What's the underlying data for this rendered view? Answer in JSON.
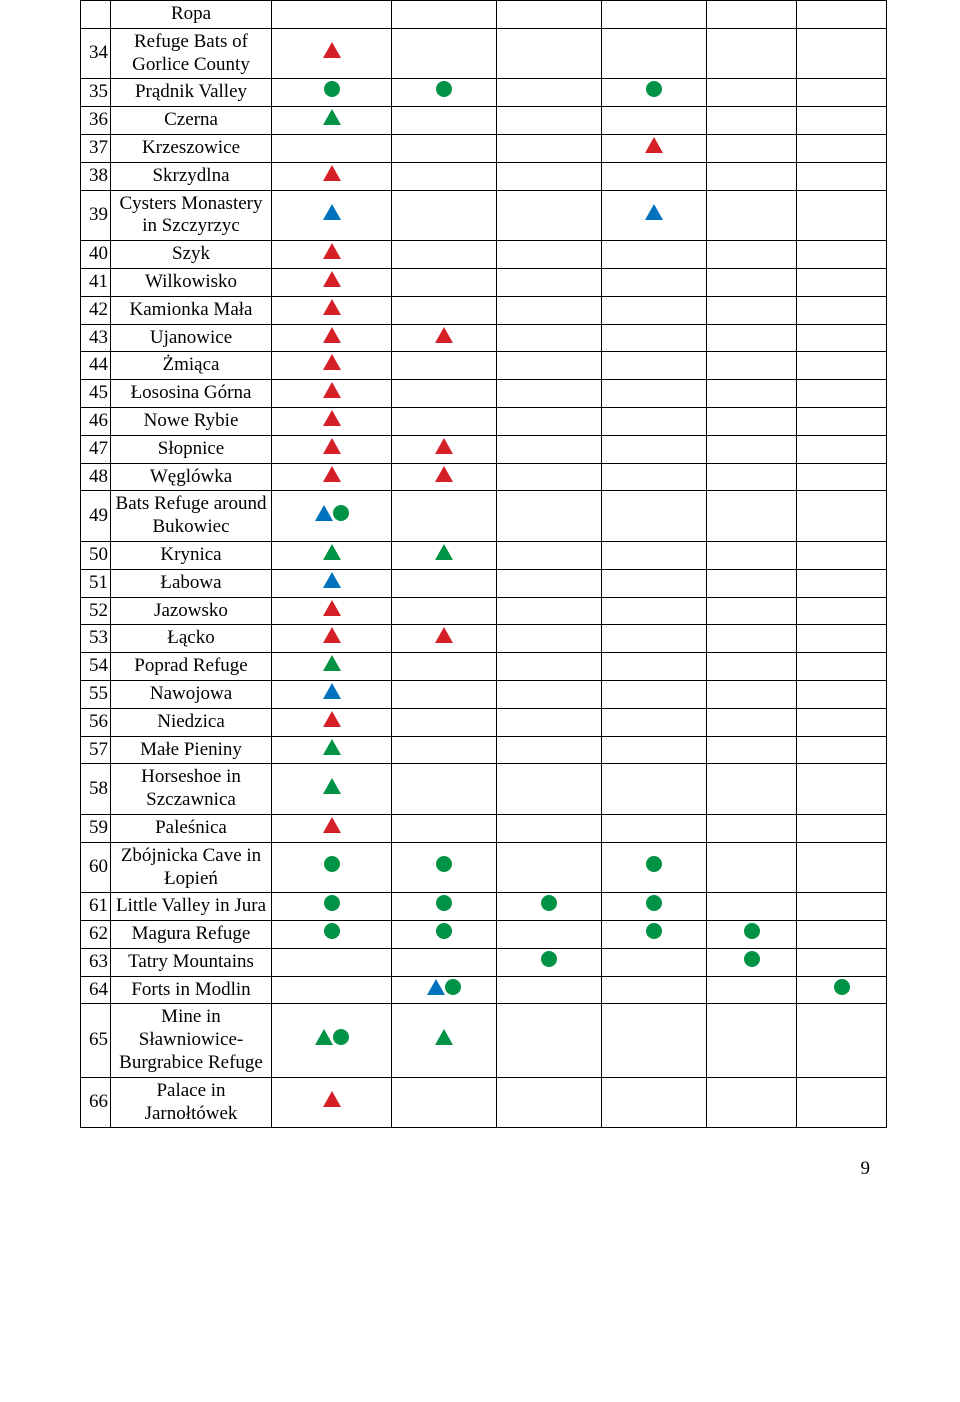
{
  "colors": {
    "red": "#d62027",
    "green": "#009245",
    "blue": "#0071bc"
  },
  "shape_size": {
    "triangle_w": 18,
    "triangle_h": 16,
    "circle_d": 16
  },
  "page_number": "9",
  "rows": [
    {
      "num": "",
      "name": "Ropa",
      "marks": [
        [],
        [],
        [],
        [],
        [],
        []
      ]
    },
    {
      "num": "34",
      "name": "Refuge Bats of Gorlice County",
      "marks": [
        [
          "tr-red"
        ],
        [],
        [],
        [],
        [],
        []
      ]
    },
    {
      "num": "35",
      "name": "Prądnik Valley",
      "marks": [
        [
          "ci-green"
        ],
        [
          "ci-green"
        ],
        [],
        [
          "ci-green"
        ],
        [],
        []
      ]
    },
    {
      "num": "36",
      "name": "Czerna",
      "marks": [
        [
          "tr-green"
        ],
        [],
        [],
        [],
        [],
        []
      ]
    },
    {
      "num": "37",
      "name": "Krzeszowice",
      "marks": [
        [],
        [],
        [],
        [
          "tr-red"
        ],
        [],
        []
      ]
    },
    {
      "num": "38",
      "name": "Skrzydlna",
      "marks": [
        [
          "tr-red"
        ],
        [],
        [],
        [],
        [],
        []
      ]
    },
    {
      "num": "39",
      "name": "Cysters Monastery in Szczyrzyc",
      "marks": [
        [
          "tr-blue"
        ],
        [],
        [],
        [
          "tr-blue"
        ],
        [],
        []
      ]
    },
    {
      "num": "40",
      "name": "Szyk",
      "marks": [
        [
          "tr-red"
        ],
        [],
        [],
        [],
        [],
        []
      ]
    },
    {
      "num": "41",
      "name": "Wilkowisko",
      "marks": [
        [
          "tr-red"
        ],
        [],
        [],
        [],
        [],
        []
      ]
    },
    {
      "num": "42",
      "name": "Kamionka Mała",
      "marks": [
        [
          "tr-red"
        ],
        [],
        [],
        [],
        [],
        []
      ]
    },
    {
      "num": "43",
      "name": "Ujanowice",
      "marks": [
        [
          "tr-red"
        ],
        [
          "tr-red"
        ],
        [],
        [],
        [],
        []
      ]
    },
    {
      "num": "44",
      "name": "Żmiąca",
      "marks": [
        [
          "tr-red"
        ],
        [],
        [],
        [],
        [],
        []
      ]
    },
    {
      "num": "45",
      "name": "Łososina Górna",
      "marks": [
        [
          "tr-red"
        ],
        [],
        [],
        [],
        [],
        []
      ]
    },
    {
      "num": "46",
      "name": "Nowe Rybie",
      "marks": [
        [
          "tr-red"
        ],
        [],
        [],
        [],
        [],
        []
      ]
    },
    {
      "num": "47",
      "name": "Słopnice",
      "marks": [
        [
          "tr-red"
        ],
        [
          "tr-red"
        ],
        [],
        [],
        [],
        []
      ]
    },
    {
      "num": "48",
      "name": "Węglówka",
      "marks": [
        [
          "tr-red"
        ],
        [
          "tr-red"
        ],
        [],
        [],
        [],
        []
      ]
    },
    {
      "num": "49",
      "name": "Bats Refuge around Bukowiec",
      "marks": [
        [
          "tr-blue",
          "ci-green"
        ],
        [],
        [],
        [],
        [],
        []
      ]
    },
    {
      "num": "50",
      "name": "Krynica",
      "marks": [
        [
          "tr-green"
        ],
        [
          "tr-green"
        ],
        [],
        [],
        [],
        []
      ]
    },
    {
      "num": "51",
      "name": "Łabowa",
      "marks": [
        [
          "tr-blue"
        ],
        [],
        [],
        [],
        [],
        []
      ]
    },
    {
      "num": "52",
      "name": "Jazowsko",
      "marks": [
        [
          "tr-red"
        ],
        [],
        [],
        [],
        [],
        []
      ]
    },
    {
      "num": "53",
      "name": "Łącko",
      "marks": [
        [
          "tr-red"
        ],
        [
          "tr-red"
        ],
        [],
        [],
        [],
        []
      ]
    },
    {
      "num": "54",
      "name": "Poprad Refuge",
      "marks": [
        [
          "tr-green"
        ],
        [],
        [],
        [],
        [],
        []
      ]
    },
    {
      "num": "55",
      "name": "Nawojowa",
      "marks": [
        [
          "tr-blue"
        ],
        [],
        [],
        [],
        [],
        []
      ]
    },
    {
      "num": "56",
      "name": "Niedzica",
      "marks": [
        [
          "tr-red"
        ],
        [],
        [],
        [],
        [],
        []
      ]
    },
    {
      "num": "57",
      "name": "Małe Pieniny",
      "marks": [
        [
          "tr-green"
        ],
        [],
        [],
        [],
        [],
        []
      ]
    },
    {
      "num": "58",
      "name": "Horseshoe in Szczawnica",
      "marks": [
        [
          "tr-green"
        ],
        [],
        [],
        [],
        [],
        []
      ]
    },
    {
      "num": "59",
      "name": "Paleśnica",
      "marks": [
        [
          "tr-red"
        ],
        [],
        [],
        [],
        [],
        []
      ]
    },
    {
      "num": "60",
      "name": "Zbójnicka Cave in Łopień",
      "marks": [
        [
          "ci-green"
        ],
        [
          "ci-green"
        ],
        [],
        [
          "ci-green"
        ],
        [],
        []
      ]
    },
    {
      "num": "61",
      "name": "Little Valley in Jura",
      "marks": [
        [
          "ci-green"
        ],
        [
          "ci-green"
        ],
        [
          "ci-green"
        ],
        [
          "ci-green"
        ],
        [],
        []
      ]
    },
    {
      "num": "62",
      "name": "Magura Refuge",
      "marks": [
        [
          "ci-green"
        ],
        [
          "ci-green"
        ],
        [],
        [
          "ci-green"
        ],
        [
          "ci-green"
        ],
        []
      ]
    },
    {
      "num": "63",
      "name": "Tatry Mountains",
      "marks": [
        [],
        [],
        [
          "ci-green"
        ],
        [],
        [
          "ci-green"
        ],
        []
      ]
    },
    {
      "num": "64",
      "name": "Forts in Modlin",
      "marks": [
        [],
        [
          "tr-blue",
          "ci-green"
        ],
        [],
        [],
        [],
        [
          "ci-green"
        ]
      ]
    },
    {
      "num": "65",
      "name": "Mine in Sławniowice-Burgrabice Refuge",
      "marks": [
        [
          "tr-green",
          "ci-green"
        ],
        [
          "tr-green"
        ],
        [],
        [],
        [],
        []
      ]
    },
    {
      "num": "66",
      "name": "Palace in Jarnołtówek",
      "marks": [
        [
          "tr-red"
        ],
        [],
        [],
        [],
        [],
        []
      ]
    }
  ]
}
